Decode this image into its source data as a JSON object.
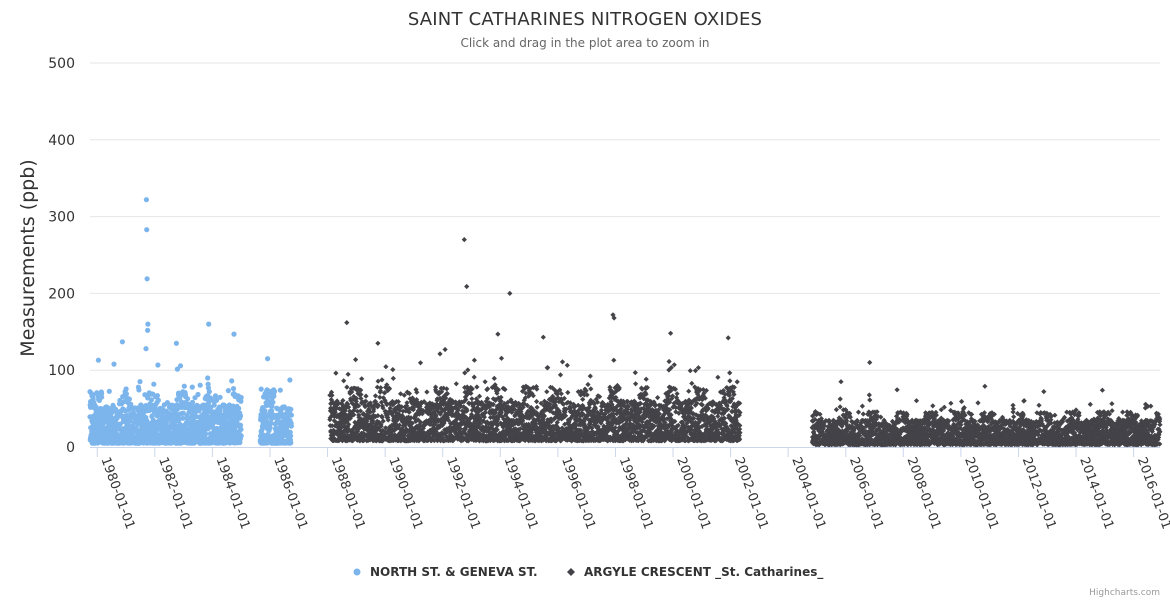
{
  "chart_data": {
    "type": "scatter",
    "title": "SAINT CATHARINES NITROGEN OXIDES",
    "subtitle": "Click and drag in the plot area to zoom in",
    "ylabel": "Measurements (ppb)",
    "xlabel": "",
    "ylim": [
      0,
      500
    ],
    "yticks": [
      0,
      100,
      200,
      300,
      400,
      500
    ],
    "xlim": [
      "1979-10-01",
      "2016-12-01"
    ],
    "xticks": [
      "1980-01-01",
      "1982-01-01",
      "1984-01-01",
      "1986-01-01",
      "1988-01-01",
      "1990-01-01",
      "1992-01-01",
      "1994-01-01",
      "1996-01-01",
      "1998-01-01",
      "2000-01-01",
      "2002-01-01",
      "2004-01-01",
      "2006-01-01",
      "2008-01-01",
      "2010-01-01",
      "2012-01-01",
      "2014-01-01",
      "2016-01-01"
    ],
    "grid": true,
    "legend_position": "bottom-center",
    "series": [
      {
        "name": "NORTH ST. & GENEVA ST.",
        "color": "#7cb5ec",
        "marker": "circle",
        "ranges": [
          {
            "start": "1979-10-01",
            "end": "1984-12-31",
            "typical_low": 5,
            "typical_high": 55
          },
          {
            "start": "1985-09-01",
            "end": "1986-09-30",
            "typical_low": 5,
            "typical_high": 55
          }
        ],
        "notable_points": [
          {
            "x": "1981-09-15",
            "y": 322
          },
          {
            "x": "1981-09-20",
            "y": 283
          },
          {
            "x": "1981-09-25",
            "y": 219
          },
          {
            "x": "1981-10-05",
            "y": 160
          },
          {
            "x": "1981-10-01",
            "y": 152
          },
          {
            "x": "1981-09-10",
            "y": 128
          },
          {
            "x": "1980-11-15",
            "y": 137
          },
          {
            "x": "1982-10-01",
            "y": 135
          },
          {
            "x": "1983-11-15",
            "y": 160
          },
          {
            "x": "1984-10-01",
            "y": 147
          },
          {
            "x": "1985-12-01",
            "y": 115
          },
          {
            "x": "1980-01-15",
            "y": 113
          },
          {
            "x": "1980-08-01",
            "y": 108
          }
        ]
      },
      {
        "name": "ARGYLE CRESCENT _St. Catharines_",
        "color": "#434348",
        "marker": "diamond",
        "ranges": [
          {
            "start": "1988-02-01",
            "end": "2002-04-30",
            "typical_low": 8,
            "typical_high": 60
          },
          {
            "start": "2004-11-01",
            "end": "2016-12-01",
            "typical_low": 3,
            "typical_high": 35
          }
        ],
        "notable_points": [
          {
            "x": "1992-10-01",
            "y": 270
          },
          {
            "x": "1992-11-01",
            "y": 209
          },
          {
            "x": "1994-05-01",
            "y": 200
          },
          {
            "x": "1997-12-01",
            "y": 172
          },
          {
            "x": "1997-12-15",
            "y": 168
          },
          {
            "x": "1988-09-01",
            "y": 162
          },
          {
            "x": "1993-12-01",
            "y": 147
          },
          {
            "x": "1999-12-01",
            "y": 148
          },
          {
            "x": "2001-12-01",
            "y": 142
          },
          {
            "x": "1995-07-01",
            "y": 143
          },
          {
            "x": "1989-10-01",
            "y": 135
          },
          {
            "x": "1992-02-01",
            "y": 127
          },
          {
            "x": "2006-11-01",
            "y": 110
          },
          {
            "x": "2005-11-01",
            "y": 85
          },
          {
            "x": "2010-11-01",
            "y": 79
          },
          {
            "x": "2014-12-01",
            "y": 74
          }
        ]
      }
    ]
  },
  "credit": "Highcharts.com"
}
